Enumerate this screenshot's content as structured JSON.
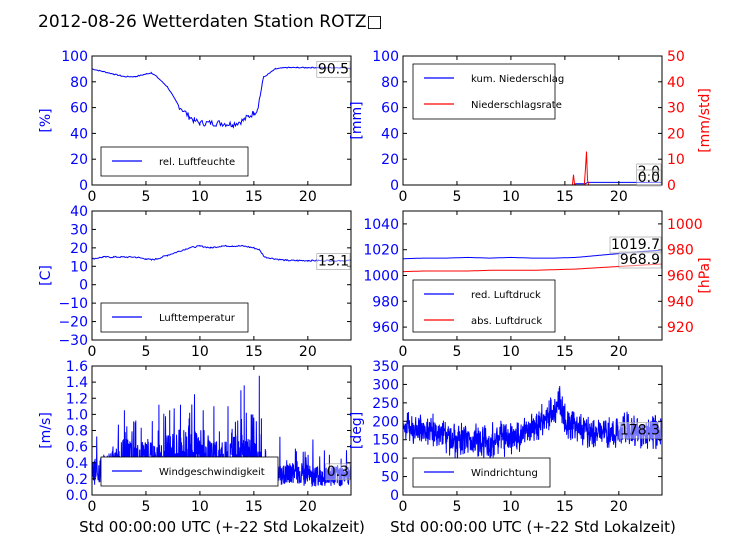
{
  "title": "2012-08-26 Wetterdaten Station ROTZ□",
  "xlabel": "Std 00:00:00 UTC (+-22 Std Lokalzeit)",
  "colors": {
    "left": "#0000ff",
    "right": "#ff0000",
    "axis": "#000000"
  },
  "chart_data": [
    {
      "type": "line",
      "ylabel": "[%]",
      "xlim": [
        0,
        24
      ],
      "ylim": [
        0,
        100
      ],
      "xticks": [
        "0",
        "5",
        "10",
        "15",
        "20"
      ],
      "yticks": [
        "0",
        "20",
        "40",
        "60",
        "80",
        "100"
      ],
      "series": [
        {
          "name": "rel. Luftfeuchte",
          "color": "#0000ff",
          "x": [
            0,
            1,
            2,
            3,
            4,
            5,
            5.5,
            6,
            7,
            8,
            9,
            9.5,
            10,
            11,
            12,
            13,
            14,
            14.5,
            15,
            15.3,
            15.6,
            15.8,
            16,
            16.5,
            17,
            18,
            19,
            20,
            21,
            22,
            23,
            24
          ],
          "values": [
            90,
            88,
            86,
            84,
            84,
            86,
            87,
            84,
            76,
            62,
            53,
            50,
            48,
            48,
            48,
            47,
            50,
            53,
            56,
            58,
            70,
            80,
            84,
            87,
            90,
            91,
            91,
            91,
            91,
            91,
            91,
            90.5
          ]
        }
      ],
      "last_value": "90.5"
    },
    {
      "type": "line",
      "ylabel": "[mm]",
      "y2label": "[mm/std]",
      "xlim": [
        0,
        24
      ],
      "ylim": [
        0,
        100
      ],
      "y2lim": [
        0,
        50
      ],
      "xticks": [
        "0",
        "5",
        "10",
        "15",
        "20"
      ],
      "yticks": [
        "0",
        "20",
        "40",
        "60",
        "80",
        "100"
      ],
      "y2ticks": [
        "0",
        "10",
        "20",
        "30",
        "40",
        "50"
      ],
      "series": [
        {
          "name": "kum. Niederschlag",
          "axis": "left",
          "color": "#0000ff",
          "x": [
            0,
            15.8,
            16,
            16.9,
            17.1,
            24
          ],
          "values": [
            0,
            0,
            1,
            1,
            2,
            2
          ]
        },
        {
          "name": "Niederschlagsrate",
          "axis": "right",
          "color": "#ff0000",
          "x": [
            0,
            15.7,
            15.8,
            15.9,
            16.0,
            16.8,
            16.9,
            17.0,
            17.1,
            17.2,
            24
          ],
          "values": [
            0,
            0,
            4,
            0,
            0,
            0,
            6,
            13,
            2,
            0,
            0
          ]
        }
      ],
      "last_values": [
        "2.0",
        "0.0"
      ]
    },
    {
      "type": "line",
      "ylabel": "[C]",
      "xlim": [
        0,
        24
      ],
      "ylim": [
        -30,
        40
      ],
      "xticks": [
        "0",
        "5",
        "10",
        "15",
        "20"
      ],
      "yticks": [
        "−30",
        "−20",
        "−10",
        "0",
        "10",
        "20",
        "30",
        "40"
      ],
      "series": [
        {
          "name": "Lufttemperatur",
          "color": "#0000ff",
          "x": [
            0,
            1,
            2,
            3,
            4,
            5,
            5.5,
            6,
            7,
            8,
            9,
            10,
            11,
            12,
            13,
            14,
            15,
            15.5,
            16,
            17,
            18,
            19,
            20,
            21,
            22,
            23,
            24
          ],
          "values": [
            14,
            15,
            15,
            15,
            15,
            14,
            13.5,
            14,
            16,
            18,
            20,
            21,
            20,
            21,
            21,
            21,
            20,
            19,
            15,
            14,
            13.2,
            13.1,
            13.1,
            13.1,
            13.1,
            13.1,
            13.1
          ]
        }
      ],
      "last_value": "13.1"
    },
    {
      "type": "line",
      "ylabel": "",
      "y2label": "[hPa]",
      "xlim": [
        0,
        24
      ],
      "ylim": [
        950,
        1050
      ],
      "y2lim": [
        910,
        1010
      ],
      "xticks": [
        "0",
        "5",
        "10",
        "15",
        "20"
      ],
      "yticks": [
        "960",
        "980",
        "1000",
        "1020",
        "1040"
      ],
      "y2ticks": [
        "920",
        "940",
        "960",
        "980",
        "1000"
      ],
      "series": [
        {
          "name": "red. Luftdruck",
          "axis": "left",
          "color": "#0000ff",
          "x": [
            0,
            2,
            4,
            6,
            8,
            10,
            12,
            14,
            16,
            18,
            20,
            22,
            24
          ],
          "values": [
            1013,
            1013.5,
            1013.5,
            1014,
            1013.5,
            1014,
            1013.5,
            1013.5,
            1014,
            1015.5,
            1017,
            1018.5,
            1019.7
          ]
        },
        {
          "name": "abs. Luftdruck",
          "axis": "right",
          "color": "#ff0000",
          "x": [
            0,
            2,
            4,
            6,
            8,
            10,
            12,
            14,
            16,
            18,
            20,
            22,
            24
          ],
          "values": [
            963,
            963.5,
            963.5,
            963.5,
            964,
            964,
            964,
            964.5,
            965,
            966,
            967,
            968,
            968.9
          ]
        }
      ],
      "last_values": [
        "1019.7",
        "968.9"
      ]
    },
    {
      "type": "line",
      "ylabel": "[m/s]",
      "xlim": [
        0,
        24
      ],
      "ylim": [
        0,
        1.6
      ],
      "xticks": [
        "0",
        "5",
        "10",
        "15",
        "20"
      ],
      "yticks": [
        "0.0",
        "0.2",
        "0.4",
        "0.6",
        "0.8",
        "1.0",
        "1.2",
        "1.4",
        "1.6"
      ],
      "series": [
        {
          "name": "Windgeschwindigkeit",
          "color": "#0000ff",
          "x": [
            0,
            1,
            2,
            3,
            4,
            5,
            6,
            7,
            8,
            9,
            10,
            11,
            12,
            13,
            14,
            15,
            16,
            17,
            18,
            19,
            20,
            21,
            22,
            23,
            24
          ],
          "values": [
            0.35,
            0.4,
            0.45,
            0.6,
            0.5,
            0.55,
            0.5,
            0.6,
            0.65,
            0.7,
            0.6,
            0.55,
            0.5,
            0.6,
            0.6,
            0.55,
            0.35,
            0.3,
            0.3,
            0.35,
            0.3,
            0.3,
            0.3,
            0.3,
            0.3
          ],
          "spikes": [
            [
              3,
              1.05
            ],
            [
              4,
              0.9
            ],
            [
              6.2,
              1.12
            ],
            [
              7.2,
              1.05
            ],
            [
              8.2,
              1.12
            ],
            [
              9,
              0.95
            ],
            [
              9.5,
              1.25
            ],
            [
              10.3,
              1.05
            ],
            [
              11.3,
              1.1
            ],
            [
              12.6,
              1.1
            ],
            [
              13.8,
              1.3
            ],
            [
              14.1,
              1.36
            ],
            [
              14.3,
              1.02
            ],
            [
              14.9,
              1.0
            ],
            [
              15.5,
              1.48
            ],
            [
              15.7,
              0.95
            ],
            [
              16.1,
              0.55
            ],
            [
              22,
              0.5
            ]
          ]
        }
      ],
      "last_value": "0.3"
    },
    {
      "type": "line",
      "ylabel": "[deg]",
      "xlim": [
        0,
        24
      ],
      "ylim": [
        0,
        350
      ],
      "xticks": [
        "0",
        "5",
        "10",
        "15",
        "20"
      ],
      "yticks": [
        "0",
        "50",
        "100",
        "150",
        "200",
        "250",
        "300",
        "350"
      ],
      "series": [
        {
          "name": "Windrichtung",
          "color": "#0000ff",
          "x": [
            0,
            1,
            2,
            3,
            4,
            5,
            6,
            7,
            8,
            9,
            10,
            11,
            12,
            13,
            14,
            14.5,
            15,
            16,
            17,
            18,
            19,
            20,
            21,
            22,
            23,
            24
          ],
          "values": [
            190,
            180,
            170,
            175,
            160,
            140,
            150,
            150,
            140,
            160,
            150,
            165,
            180,
            200,
            230,
            250,
            200,
            190,
            175,
            170,
            165,
            170,
            180,
            170,
            175,
            178.3
          ],
          "noise": 55
        }
      ],
      "last_value": "178.3"
    }
  ]
}
